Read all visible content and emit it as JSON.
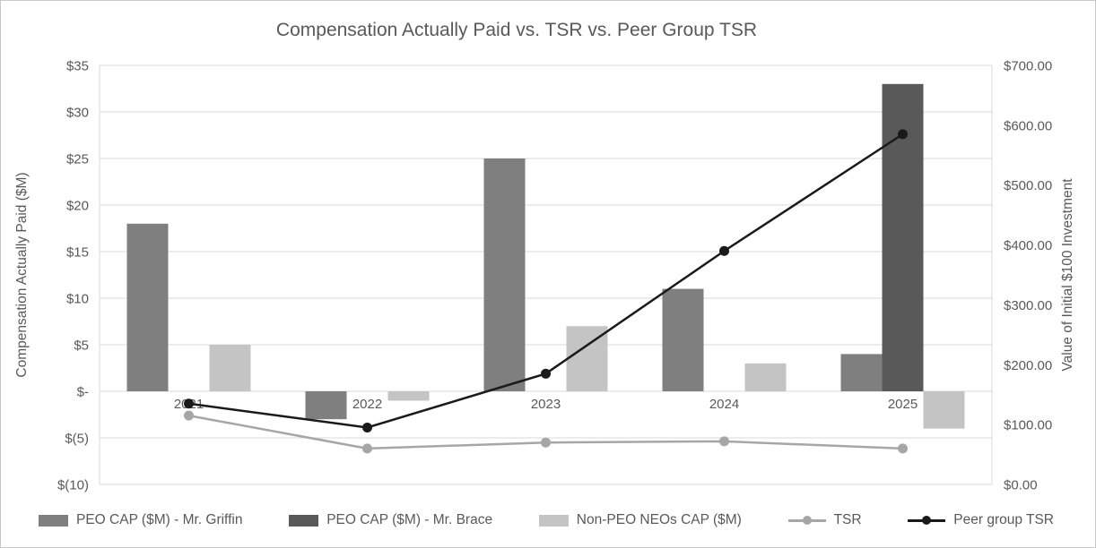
{
  "title": "Compensation Actually Paid vs. TSR vs. Peer Group TSR",
  "style": {
    "text_color": "#595959",
    "grid_color": "#d9d9d9",
    "border_color": "#c9c9c9",
    "background": "#ffffff"
  },
  "chart_data": {
    "type": "bar+line",
    "categories": [
      "2021",
      "2022",
      "2023",
      "2024",
      "2025"
    ],
    "bar_series": [
      {
        "key": "griffin",
        "name": "PEO CAP ($M) - Mr. Griffin",
        "color": "#7f7f7f",
        "axis": "left",
        "values": [
          18,
          -3,
          25,
          11,
          4
        ]
      },
      {
        "key": "brace",
        "name": "PEO CAP ($M) - Mr. Brace",
        "color": "#595959",
        "axis": "left",
        "values": [
          null,
          null,
          null,
          null,
          33
        ]
      },
      {
        "key": "non-peo-neos",
        "name": "Non-PEO NEOs CAP ($M)",
        "color": "#c4c4c4",
        "axis": "left",
        "values": [
          5,
          -1,
          7,
          3,
          -4
        ]
      }
    ],
    "line_series": [
      {
        "key": "tsr",
        "name": "TSR",
        "color": "#a6a6a6",
        "axis": "right",
        "values": [
          115,
          60,
          70,
          72,
          60
        ]
      },
      {
        "key": "peer-group-tsr",
        "name": "Peer group TSR",
        "color": "#1a1a1a",
        "axis": "right",
        "values": [
          135,
          95,
          185,
          390,
          585
        ]
      }
    ],
    "left_axis": {
      "label": "Compensation Actually Paid ($M)",
      "min": -10,
      "max": 35,
      "step": 5,
      "tick_labels": [
        "$35",
        "$30",
        "$25",
        "$20",
        "$15",
        "$10",
        "$5",
        "$-",
        "$(5)",
        "$(10)"
      ]
    },
    "right_axis": {
      "label": "Value of Initial $100 Investment",
      "min": 0,
      "max": 700,
      "step": 100,
      "tick_labels": [
        "$700.00",
        "$600.00",
        "$500.00",
        "$400.00",
        "$300.00",
        "$200.00",
        "$100.00",
        "$0.00"
      ]
    },
    "grid": true,
    "legend_position": "bottom"
  }
}
